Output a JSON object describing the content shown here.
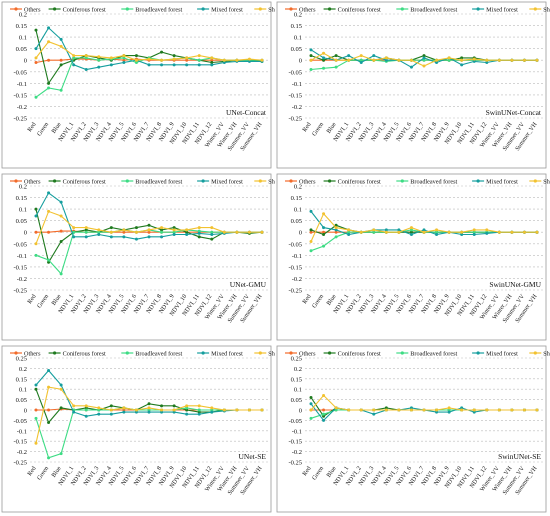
{
  "legend": [
    "Others",
    "Coniferous forest",
    "Broadleaved forest",
    "Mixed forest",
    "Shrubland"
  ],
  "colors": {
    "Others": "#f26b2a",
    "Coniferous forest": "#1f7a1f",
    "Broadleaved forest": "#3ddc84",
    "Mixed forest": "#159e9e",
    "Shrubland": "#f2c230"
  },
  "chart_data": [
    {
      "type": "line",
      "title": "UNet-Concat",
      "categories": [
        "Red",
        "Green",
        "Blue",
        "NDVI_1",
        "NDVI_2",
        "NDVI_3",
        "NDVI_4",
        "NDVI_5",
        "NDVI_6",
        "NDVI_7",
        "NDVI_8",
        "NDVI_9",
        "NDVI_10",
        "NDVI_11",
        "NDVI_12",
        "Winter_VV",
        "Winter_VH",
        "Summer_VV",
        "Summer_VH"
      ],
      "ylim": [
        -0.25,
        0.2
      ],
      "yticks": [
        "0.2",
        "0.15",
        "0.1",
        "0.05",
        "0",
        "-0.05",
        "-0.1",
        "-0.15",
        "-0.2",
        "-0.25"
      ],
      "grid": true,
      "legend_position": "top",
      "series": [
        {
          "name": "Others",
          "values": [
            -0.01,
            0.0,
            0.0,
            0.005,
            0.005,
            0.0,
            0.005,
            0.0,
            0.005,
            0.0,
            0.0,
            0.0,
            0.0,
            0.0,
            0.0,
            0.0,
            0.0,
            0.0,
            0.0
          ]
        },
        {
          "name": "Coniferous forest",
          "values": [
            0.13,
            -0.1,
            -0.02,
            0.0,
            0.02,
            0.01,
            0.0,
            0.02,
            0.02,
            0.01,
            0.035,
            0.02,
            0.01,
            0.0,
            -0.01,
            -0.005,
            0.0,
            0.0,
            -0.005
          ]
        },
        {
          "name": "Broadleaved forest",
          "values": [
            -0.16,
            -0.12,
            -0.13,
            0.01,
            0.01,
            0.0,
            0.005,
            0.01,
            -0.01,
            0.01,
            0.0,
            0.005,
            0.01,
            0.0,
            0.01,
            0.0,
            0.0,
            0.0,
            0.0
          ]
        },
        {
          "name": "Mixed forest",
          "values": [
            0.05,
            0.14,
            0.09,
            -0.02,
            -0.04,
            -0.03,
            -0.02,
            -0.01,
            0.0,
            -0.02,
            -0.02,
            -0.02,
            -0.02,
            -0.02,
            -0.02,
            -0.01,
            -0.005,
            -0.005,
            -0.005
          ]
        },
        {
          "name": "Shrubland",
          "values": [
            0.01,
            0.08,
            0.06,
            0.02,
            0.02,
            0.015,
            0.01,
            0.02,
            0.0,
            0.005,
            0.0,
            0.005,
            0.01,
            0.02,
            0.01,
            0.0,
            0.0,
            0.005,
            0.0
          ]
        }
      ]
    },
    {
      "type": "line",
      "title": "SwinUNet-Concat",
      "categories": [
        "Red",
        "Green",
        "Blue",
        "NDVI_1",
        "NDVI_2",
        "NDVI_3",
        "NDVI_4",
        "NDVI_5",
        "NDVI_6",
        "NDVI_7",
        "NDVI_8",
        "NDVI_9",
        "NDVI_10",
        "NDVI_11",
        "NDVI_12",
        "Winter_VV",
        "Winter_VH",
        "Summer_VV",
        "Summer_VH"
      ],
      "ylim": [
        -0.25,
        0.2
      ],
      "yticks": [
        "0.2",
        "0.15",
        "0.1",
        "0.05",
        "0",
        "-0.05",
        "-0.1",
        "-0.15",
        "-0.2",
        "-0.25"
      ],
      "grid": true,
      "legend_position": "top",
      "series": [
        {
          "name": "Others",
          "values": [
            0.0,
            0.0,
            0.0,
            0.0,
            0.0,
            0.0,
            0.0,
            0.0,
            0.0,
            0.0,
            0.0,
            0.0,
            0.0,
            0.0,
            0.0,
            0.0,
            0.0,
            0.0,
            0.0
          ]
        },
        {
          "name": "Coniferous forest",
          "values": [
            0.02,
            0.0,
            0.02,
            0.0,
            0.0,
            0.0,
            0.01,
            0.0,
            0.0,
            0.02,
            0.0,
            0.0,
            0.01,
            0.01,
            0.0,
            0.0,
            0.0,
            0.0,
            0.0
          ]
        },
        {
          "name": "Broadleaved forest",
          "values": [
            -0.04,
            -0.035,
            -0.03,
            0.0,
            0.0,
            0.0,
            -0.005,
            0.0,
            0.0,
            0.0,
            0.0,
            0.0,
            0.0,
            0.0,
            0.0,
            0.0,
            0.0,
            0.0,
            0.0
          ]
        },
        {
          "name": "Mixed forest",
          "values": [
            0.045,
            0.01,
            0.0,
            0.02,
            -0.01,
            0.02,
            0.0,
            0.0,
            -0.03,
            0.01,
            -0.01,
            0.01,
            -0.02,
            -0.005,
            -0.01,
            0.0,
            0.0,
            0.0,
            0.0
          ]
        },
        {
          "name": "Shrubland",
          "values": [
            0.0,
            0.03,
            0.0,
            0.0,
            0.02,
            0.0,
            0.01,
            0.0,
            0.0,
            -0.025,
            0.0,
            0.01,
            0.0,
            0.005,
            0.0,
            0.0,
            0.0,
            0.0,
            0.0
          ]
        }
      ]
    },
    {
      "type": "line",
      "title": "UNet-GMU",
      "categories": [
        "Red",
        "Green",
        "Blue",
        "NDVI_1",
        "NDVI_2",
        "NDVI_3",
        "NDVI_4",
        "NDVI_5",
        "NDVI_6",
        "NDVI_7",
        "NDVI_8",
        "NDVI_9",
        "NDVI_10",
        "NDVI_11",
        "NDVI_12",
        "Winter_VV",
        "Winter_VH",
        "Summer_VV",
        "Summer_VH"
      ],
      "ylim": [
        -0.25,
        0.2
      ],
      "yticks": [
        "0.2",
        "0.15",
        "0.1",
        "0.05",
        "0",
        "-0.05",
        "-0.1",
        "-0.15",
        "-0.2",
        "-0.25"
      ],
      "grid": true,
      "legend_position": "top",
      "series": [
        {
          "name": "Others",
          "values": [
            0.0,
            0.0,
            0.005,
            0.005,
            0.0,
            0.0,
            0.0,
            0.0,
            0.0,
            0.0,
            0.0,
            0.0,
            0.0,
            0.0,
            0.0,
            0.0,
            0.0,
            0.0,
            0.0
          ]
        },
        {
          "name": "Coniferous forest",
          "values": [
            0.1,
            -0.13,
            -0.04,
            0.0,
            0.01,
            0.0,
            0.02,
            0.01,
            0.02,
            0.03,
            0.01,
            0.02,
            0.0,
            -0.02,
            -0.03,
            0.0,
            0.0,
            -0.005,
            0.0
          ]
        },
        {
          "name": "Broadleaved forest",
          "values": [
            -0.1,
            -0.12,
            -0.18,
            0.0,
            0.0,
            0.0,
            0.0,
            0.01,
            0.0,
            0.01,
            0.0,
            0.0,
            0.01,
            0.005,
            0.0,
            0.0,
            0.0,
            0.0,
            0.0
          ]
        },
        {
          "name": "Mixed forest",
          "values": [
            0.07,
            0.17,
            0.13,
            -0.02,
            -0.02,
            -0.01,
            -0.02,
            -0.02,
            -0.03,
            -0.02,
            -0.02,
            -0.01,
            -0.01,
            -0.005,
            -0.01,
            -0.005,
            0.0,
            0.0,
            0.0
          ]
        },
        {
          "name": "Shrubland",
          "values": [
            -0.05,
            0.09,
            0.07,
            0.02,
            0.02,
            0.01,
            0.0,
            0.01,
            0.0,
            0.01,
            0.02,
            0.01,
            0.01,
            0.02,
            0.02,
            0.0,
            0.0,
            0.0,
            0.0
          ]
        }
      ]
    },
    {
      "type": "line",
      "title": "SwinUNet-GMU",
      "categories": [
        "Red",
        "Green",
        "Blue",
        "NDVI_1",
        "NDVI_2",
        "NDVI_3",
        "NDVI_4",
        "NDVI_5",
        "NDVI_6",
        "NDVI_7",
        "NDVI_8",
        "NDVI_9",
        "NDVI_10",
        "NDVI_11",
        "NDVI_12",
        "Winter_VV",
        "Winter_VH",
        "Summer_VV",
        "Summer_VH"
      ],
      "ylim": [
        -0.25,
        0.2
      ],
      "yticks": [
        "0.2",
        "0.15",
        "0.1",
        "0.05",
        "0",
        "-0.05",
        "-0.1",
        "-0.15",
        "-0.2",
        "-0.25"
      ],
      "grid": true,
      "legend_position": "top",
      "series": [
        {
          "name": "Others",
          "values": [
            0.0,
            0.0,
            0.0,
            0.0,
            0.0,
            0.0,
            0.0,
            0.0,
            0.0,
            0.0,
            0.0,
            0.0,
            0.0,
            0.0,
            0.0,
            0.0,
            0.0,
            0.0,
            0.0
          ]
        },
        {
          "name": "Coniferous forest",
          "values": [
            0.01,
            -0.01,
            0.03,
            0.01,
            0.0,
            0.0,
            0.0,
            0.0,
            0.0,
            0.0,
            0.0,
            0.0,
            0.0,
            0.0,
            0.0,
            0.0,
            0.0,
            0.0,
            0.0
          ]
        },
        {
          "name": "Broadleaved forest",
          "values": [
            -0.08,
            -0.06,
            -0.02,
            0.0,
            0.0,
            0.0,
            0.0,
            0.0,
            0.01,
            0.0,
            0.0,
            0.0,
            0.0,
            0.0,
            0.0,
            0.0,
            0.0,
            0.0,
            0.0
          ]
        },
        {
          "name": "Mixed forest",
          "values": [
            0.09,
            0.02,
            0.01,
            -0.01,
            0.0,
            0.01,
            0.01,
            0.01,
            -0.01,
            0.01,
            -0.01,
            0.0,
            -0.01,
            -0.01,
            -0.005,
            0.0,
            0.0,
            0.0,
            0.0
          ]
        },
        {
          "name": "Shrubland",
          "values": [
            -0.04,
            0.08,
            0.02,
            0.01,
            0.0,
            0.01,
            0.0,
            0.0,
            0.02,
            0.0,
            0.01,
            0.0,
            0.0,
            0.01,
            0.01,
            0.0,
            0.0,
            0.0,
            0.0
          ]
        }
      ]
    },
    {
      "type": "line",
      "title": "UNet-SE",
      "categories": [
        "Red",
        "Green",
        "Blue",
        "NDVI_1",
        "NDVI_2",
        "NDVI_3",
        "NDVI_4",
        "NDVI_5",
        "NDVI_6",
        "NDVI_7",
        "NDVI_8",
        "NDVI_9",
        "NDVI_10",
        "NDVI_11",
        "NDVI_12",
        "Winter_VV",
        "Winter_VH",
        "Summer_VV",
        "Summer_VH"
      ],
      "ylim": [
        -0.25,
        0.25
      ],
      "yticks": [
        "0.25",
        "0.2",
        "0.15",
        "0.1",
        "0.05",
        "0",
        "-0.05",
        "-0.1",
        "-0.15",
        "-0.2",
        "-0.25"
      ],
      "grid": true,
      "legend_position": "top",
      "series": [
        {
          "name": "Others",
          "values": [
            0.0,
            0.0,
            0.005,
            0.0,
            0.0,
            0.0,
            0.0,
            0.0,
            0.0,
            0.0,
            0.0,
            0.0,
            0.0,
            0.0,
            0.0,
            0.0,
            0.0,
            0.0,
            0.0
          ]
        },
        {
          "name": "Coniferous forest",
          "values": [
            0.1,
            -0.06,
            0.01,
            0.0,
            0.01,
            0.0,
            0.02,
            0.01,
            0.0,
            0.03,
            0.02,
            0.02,
            0.0,
            -0.01,
            -0.01,
            0.0,
            0.0,
            0.0,
            0.0
          ]
        },
        {
          "name": "Broadleaved forest",
          "values": [
            -0.04,
            -0.23,
            -0.21,
            0.0,
            0.0,
            0.0,
            0.0,
            0.01,
            0.0,
            0.0,
            0.0,
            0.0,
            0.01,
            0.0,
            0.0,
            0.0,
            0.0,
            0.0,
            0.0
          ]
        },
        {
          "name": "Mixed forest",
          "values": [
            0.12,
            0.19,
            0.12,
            -0.01,
            -0.03,
            -0.02,
            -0.02,
            -0.01,
            -0.01,
            -0.01,
            -0.01,
            -0.01,
            -0.02,
            -0.02,
            -0.01,
            -0.005,
            0.0,
            0.0,
            0.0
          ]
        },
        {
          "name": "Shrubland",
          "values": [
            -0.16,
            0.11,
            0.1,
            0.02,
            0.02,
            0.01,
            0.0,
            0.01,
            0.0,
            0.01,
            0.0,
            0.0,
            0.02,
            0.02,
            0.01,
            0.0,
            0.0,
            0.0,
            0.0
          ]
        }
      ]
    },
    {
      "type": "line",
      "title": "SwinUNet-SE",
      "categories": [
        "Red",
        "Green",
        "Blue",
        "NDVI_1",
        "NDVI_2",
        "NDVI_3",
        "NDVI_4",
        "NDVI_5",
        "NDVI_6",
        "NDVI_7",
        "NDVI_8",
        "NDVI_9",
        "NDVI_10",
        "NDVI_11",
        "NDVI_12",
        "Winter_VV",
        "Winter_VH",
        "Summer_VV",
        "Summer_VH"
      ],
      "ylim": [
        -0.25,
        0.25
      ],
      "yticks": [
        "0.25",
        "0.2",
        "0.15",
        "0.1",
        "0.05",
        "0",
        "-0.05",
        "-0.1",
        "-0.15",
        "-0.2",
        "-0.25"
      ],
      "grid": true,
      "legend_position": "top",
      "series": [
        {
          "name": "Others",
          "values": [
            0.0,
            0.0,
            0.0,
            0.0,
            0.0,
            0.0,
            0.0,
            0.0,
            0.0,
            0.0,
            0.0,
            0.0,
            0.0,
            0.0,
            0.0,
            0.0,
            0.0,
            0.0,
            0.0
          ]
        },
        {
          "name": "Coniferous forest",
          "values": [
            0.06,
            -0.03,
            0.01,
            0.0,
            0.0,
            0.0,
            0.01,
            0.0,
            0.0,
            0.0,
            0.0,
            0.0,
            0.0,
            0.0,
            0.0,
            0.0,
            0.0,
            0.0,
            0.0
          ]
        },
        {
          "name": "Broadleaved forest",
          "values": [
            -0.04,
            -0.02,
            0.0,
            0.0,
            0.0,
            0.0,
            0.0,
            0.0,
            0.0,
            0.0,
            0.0,
            0.0,
            0.0,
            0.0,
            0.0,
            0.0,
            0.0,
            0.0,
            0.0
          ]
        },
        {
          "name": "Mixed forest",
          "values": [
            0.03,
            -0.05,
            0.01,
            0.0,
            0.0,
            -0.02,
            0.0,
            0.0,
            0.01,
            0.0,
            -0.01,
            -0.01,
            0.01,
            -0.01,
            0.0,
            0.0,
            0.0,
            0.0,
            0.0
          ]
        },
        {
          "name": "Shrubland",
          "values": [
            0.0,
            0.07,
            0.01,
            0.0,
            0.0,
            0.0,
            0.0,
            0.0,
            0.0,
            0.0,
            0.0,
            0.01,
            0.0,
            0.0,
            0.0,
            0.0,
            0.0,
            0.0,
            0.0
          ]
        }
      ]
    }
  ]
}
